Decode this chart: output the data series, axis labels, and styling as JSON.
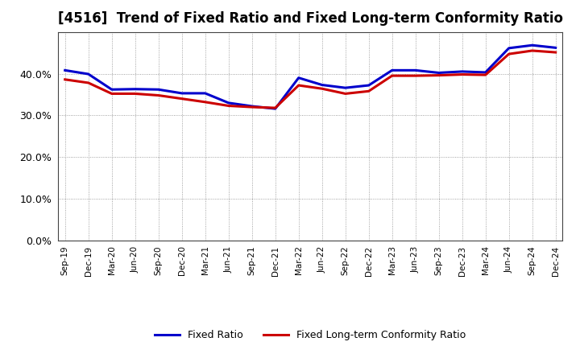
{
  "title": "[4516]  Trend of Fixed Ratio and Fixed Long-term Conformity Ratio",
  "x_labels": [
    "Sep-19",
    "Dec-19",
    "Mar-20",
    "Jun-20",
    "Sep-20",
    "Dec-20",
    "Mar-21",
    "Jun-21",
    "Sep-21",
    "Dec-21",
    "Mar-22",
    "Jun-22",
    "Sep-22",
    "Dec-22",
    "Mar-23",
    "Jun-23",
    "Sep-23",
    "Dec-23",
    "Mar-24",
    "Jun-24",
    "Sep-24",
    "Dec-24"
  ],
  "fixed_ratio": [
    0.408,
    0.399,
    0.362,
    0.363,
    0.362,
    0.353,
    0.353,
    0.33,
    0.322,
    0.316,
    0.39,
    0.373,
    0.366,
    0.372,
    0.408,
    0.408,
    0.402,
    0.405,
    0.403,
    0.461,
    0.468,
    0.462
  ],
  "fixed_lt_ratio": [
    0.386,
    0.378,
    0.352,
    0.352,
    0.348,
    0.34,
    0.332,
    0.323,
    0.32,
    0.318,
    0.372,
    0.364,
    0.352,
    0.358,
    0.395,
    0.395,
    0.396,
    0.398,
    0.397,
    0.447,
    0.455,
    0.451
  ],
  "fixed_ratio_color": "#0000CC",
  "fixed_lt_ratio_color": "#CC0000",
  "background_color": "#FFFFFF",
  "plot_bg_color": "#FFFFFF",
  "ylim": [
    0.0,
    0.5
  ],
  "yticks": [
    0.0,
    0.1,
    0.2,
    0.3,
    0.4
  ],
  "line_width": 2.2,
  "title_fontsize": 12,
  "legend_labels": [
    "Fixed Ratio",
    "Fixed Long-term Conformity Ratio"
  ]
}
